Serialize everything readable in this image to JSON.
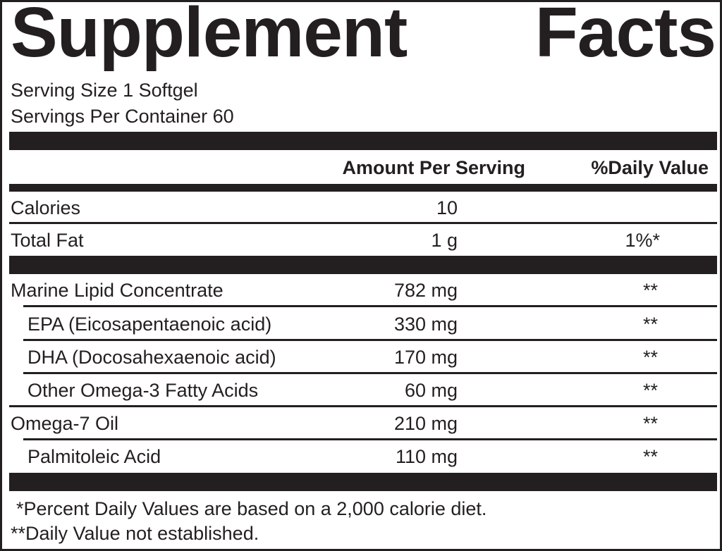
{
  "title": {
    "word1": "Supplement",
    "word2": "Facts"
  },
  "serving_size": "Serving Size 1 Softgel",
  "servings_per_container": "Servings Per Container 60",
  "header": {
    "amount": "Amount Per Serving",
    "dv": "%Daily Value"
  },
  "rows": [
    {
      "name": "Calories",
      "amount": "10",
      "dv": ""
    },
    {
      "name": "Total Fat",
      "amount": "1 g",
      "dv": "1%*"
    },
    {
      "name": "Marine Lipid Concentrate",
      "amount": "782 mg",
      "dv": "**"
    },
    {
      "name": "EPA (Eicosapentaenoic acid)",
      "amount": "330 mg",
      "dv": "**"
    },
    {
      "name": "DHA (Docosahexaenoic acid)",
      "amount": "170 mg",
      "dv": "**"
    },
    {
      "name": "Other Omega-3 Fatty Acids",
      "amount": "60 mg",
      "dv": "**"
    },
    {
      "name": "Omega-7 Oil",
      "amount": "210 mg",
      "dv": "**"
    },
    {
      "name": "Palmitoleic Acid",
      "amount": "110 mg",
      "dv": "**"
    }
  ],
  "footnotes": {
    "percent_dv": "*Percent Daily Values are based on a 2,000 calorie diet.",
    "not_established": "**Daily Value not established."
  }
}
